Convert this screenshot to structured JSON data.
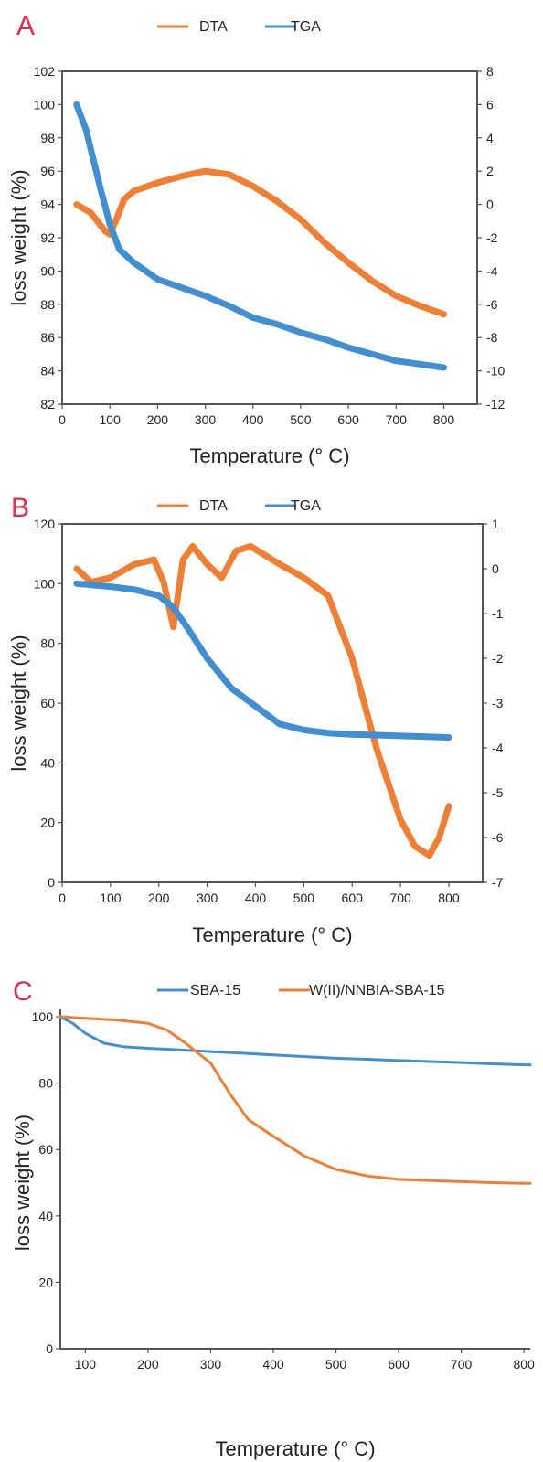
{
  "chart_data": [
    {
      "panel_label": "A",
      "type": "line",
      "xlabel": "Temperature (° C)",
      "ylabel": "loss weight (%)",
      "xlim": [
        0,
        870
      ],
      "ylim": [
        82,
        102
      ],
      "y2lim": [
        -12,
        8
      ],
      "x_ticks": [
        "0",
        "100",
        "200",
        "300",
        "400",
        "500",
        "600",
        "700",
        "800"
      ],
      "y_ticks": [
        "82",
        "84",
        "86",
        "88",
        "90",
        "92",
        "94",
        "96",
        "98",
        "100",
        "102"
      ],
      "y2_ticks": [
        "-12",
        "-10",
        "-8",
        "-6",
        "-4",
        "-2",
        "0",
        "2",
        "4",
        "6",
        "8"
      ],
      "legend_placement": "top",
      "series": [
        {
          "name": "DTA",
          "axis": "right",
          "color": "#f07f33",
          "x": [
            30,
            60,
            90,
            100,
            115,
            130,
            150,
            200,
            250,
            300,
            350,
            400,
            450,
            500,
            550,
            600,
            650,
            700,
            750,
            800
          ],
          "y": [
            0,
            -0.5,
            -1.6,
            -1.8,
            -0.8,
            0.3,
            0.8,
            1.3,
            1.7,
            2.0,
            1.8,
            1.1,
            0.2,
            -0.9,
            -2.3,
            -3.5,
            -4.6,
            -5.5,
            -6.1,
            -6.6
          ]
        },
        {
          "name": "TGA",
          "axis": "left",
          "color": "#3f8fd2",
          "x": [
            30,
            50,
            80,
            100,
            120,
            150,
            200,
            250,
            300,
            350,
            400,
            450,
            500,
            550,
            600,
            650,
            700,
            750,
            800
          ],
          "y": [
            100,
            98.5,
            95,
            92.8,
            91.3,
            90.5,
            89.5,
            89,
            88.5,
            87.9,
            87.2,
            86.8,
            86.3,
            85.9,
            85.4,
            85,
            84.6,
            84.4,
            84.2
          ]
        }
      ]
    },
    {
      "panel_label": "B",
      "type": "line",
      "xlabel": "Temperature (° C)",
      "ylabel": "loss weight (%)",
      "xlim": [
        0,
        870
      ],
      "ylim": [
        0,
        120
      ],
      "y2lim": [
        -7,
        1
      ],
      "x_ticks": [
        "0",
        "100",
        "200",
        "300",
        "400",
        "500",
        "600",
        "700",
        "800"
      ],
      "y_ticks": [
        "0",
        "20",
        "40",
        "60",
        "80",
        "100",
        "120"
      ],
      "y2_ticks": [
        "-7",
        "-6",
        "-5",
        "-4",
        "-3",
        "-2",
        "-1",
        "0",
        "1"
      ],
      "legend_placement": "top",
      "series": [
        {
          "name": "DTA",
          "axis": "right",
          "color": "#f07f33",
          "x": [
            30,
            60,
            100,
            150,
            190,
            210,
            230,
            250,
            270,
            300,
            330,
            360,
            390,
            450,
            500,
            550,
            600,
            650,
            700,
            730,
            760,
            780,
            800
          ],
          "y": [
            0,
            -0.3,
            -0.2,
            0.1,
            0.2,
            -0.3,
            -1.3,
            0.2,
            0.5,
            0.1,
            -0.2,
            0.4,
            0.5,
            0.1,
            -0.2,
            -0.6,
            -2.0,
            -4.0,
            -5.6,
            -6.2,
            -6.4,
            -6.0,
            -5.3
          ]
        },
        {
          "name": "TGA",
          "axis": "left",
          "color": "#3f8fd2",
          "x": [
            30,
            100,
            150,
            200,
            230,
            260,
            300,
            350,
            400,
            450,
            500,
            550,
            600,
            650,
            700,
            750,
            800
          ],
          "y": [
            100,
            99,
            98,
            96,
            92,
            85,
            75,
            65,
            59,
            53,
            51,
            50,
            49.5,
            49.3,
            49,
            48.8,
            48.5
          ]
        }
      ]
    },
    {
      "panel_label": "C",
      "type": "line",
      "xlabel": "Temperature (° C)",
      "ylabel": "loss weight (%)",
      "xlim": [
        60,
        810
      ],
      "ylim": [
        0,
        100
      ],
      "x_ticks": [
        "100",
        "200",
        "300",
        "400",
        "500",
        "600",
        "700",
        "800"
      ],
      "y_ticks": [
        "0",
        "20",
        "40",
        "60",
        "80",
        "100"
      ],
      "legend_placement": "top",
      "series": [
        {
          "name": "SBA-15",
          "color": "#3f8fd2",
          "x": [
            60,
            80,
            100,
            130,
            160,
            200,
            250,
            300,
            350,
            400,
            450,
            500,
            550,
            600,
            650,
            700,
            750,
            800,
            810
          ],
          "y": [
            100,
            98,
            95,
            92,
            91,
            90.5,
            90,
            89.5,
            89,
            88.5,
            88,
            87.5,
            87.2,
            86.8,
            86.5,
            86.2,
            85.8,
            85.5,
            85.5
          ]
        },
        {
          "name": "W(II)/NNBIA-SBA-15",
          "color": "#f07f33",
          "x": [
            60,
            100,
            150,
            200,
            230,
            260,
            300,
            330,
            360,
            400,
            450,
            500,
            550,
            600,
            650,
            700,
            750,
            800,
            810
          ],
          "y": [
            100,
            99.5,
            99,
            98,
            96,
            92,
            86,
            77,
            69,
            64,
            58,
            54,
            52,
            51,
            50.6,
            50.3,
            50,
            49.8,
            49.8
          ]
        }
      ]
    }
  ]
}
